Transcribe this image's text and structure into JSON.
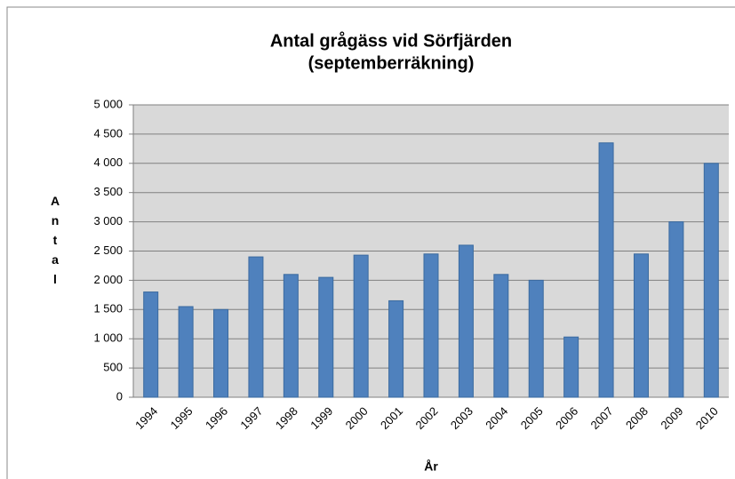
{
  "chart_data": {
    "type": "bar",
    "title": [
      "Antal grågäss vid Sörfjärden",
      "(septemberräkning)"
    ],
    "y_label": "Antal",
    "x_label": "År",
    "categories": [
      "1994",
      "1995",
      "1996",
      "1997",
      "1998",
      "1999",
      "2000",
      "2001",
      "2002",
      "2003",
      "2004",
      "2005",
      "2006",
      "2007",
      "2008",
      "2009",
      "2010"
    ],
    "values": [
      1800,
      1550,
      1500,
      2400,
      2100,
      2050,
      2430,
      1650,
      2450,
      2600,
      2100,
      2000,
      1030,
      4350,
      2450,
      3000,
      4000
    ],
    "color": "#4f81bd",
    "ylim": [
      0,
      5000
    ],
    "yticks": [
      0,
      500,
      {
        "value": 1000,
        "label": "1 000"
      },
      {
        "value": 1500,
        "label": "1 500"
      },
      {
        "value": 2000,
        "label": "2 000"
      },
      {
        "value": 2500,
        "label": "2 500"
      },
      {
        "value": 3000,
        "label": "3 000"
      },
      {
        "value": 3500,
        "label": "3 500"
      },
      {
        "value": 4000,
        "label": "4 000"
      },
      {
        "value": 4500,
        "label": "4 500"
      },
      {
        "value": 5000,
        "label": "5 000"
      }
    ],
    "grid": true
  }
}
